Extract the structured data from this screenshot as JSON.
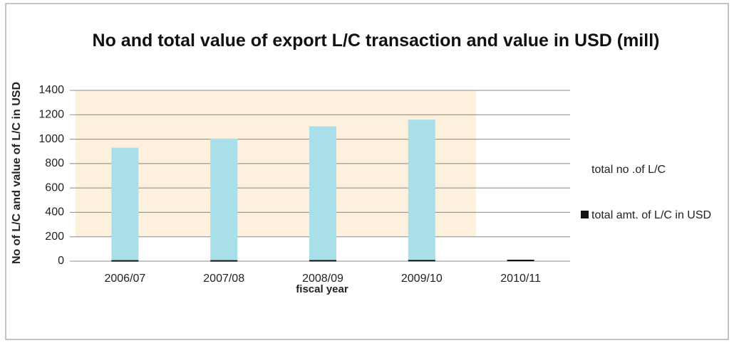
{
  "chart_data": {
    "type": "bar",
    "title": "No and total value of export L/C transaction and value in USD (mill)",
    "x_label": "fiscal year",
    "y_label": "No of L/C and value of L/C in USD",
    "categories": [
      "2006/07",
      "2007/08",
      "2008/09",
      "2009/10",
      "2010/11"
    ],
    "series": [
      {
        "name": "total no .of L/C",
        "color": "#a9dfe8",
        "values": [
          930,
          1005,
          1105,
          1160,
          null
        ]
      },
      {
        "name": "total amt. of L/C in USD",
        "color": "#111111",
        "values": [
          8,
          8,
          9,
          10,
          12
        ]
      }
    ],
    "ylim": [
      0,
      1400
    ],
    "yticks": [
      0,
      200,
      400,
      600,
      800,
      1000,
      1200,
      1400
    ],
    "grid": true,
    "legend": "right"
  }
}
